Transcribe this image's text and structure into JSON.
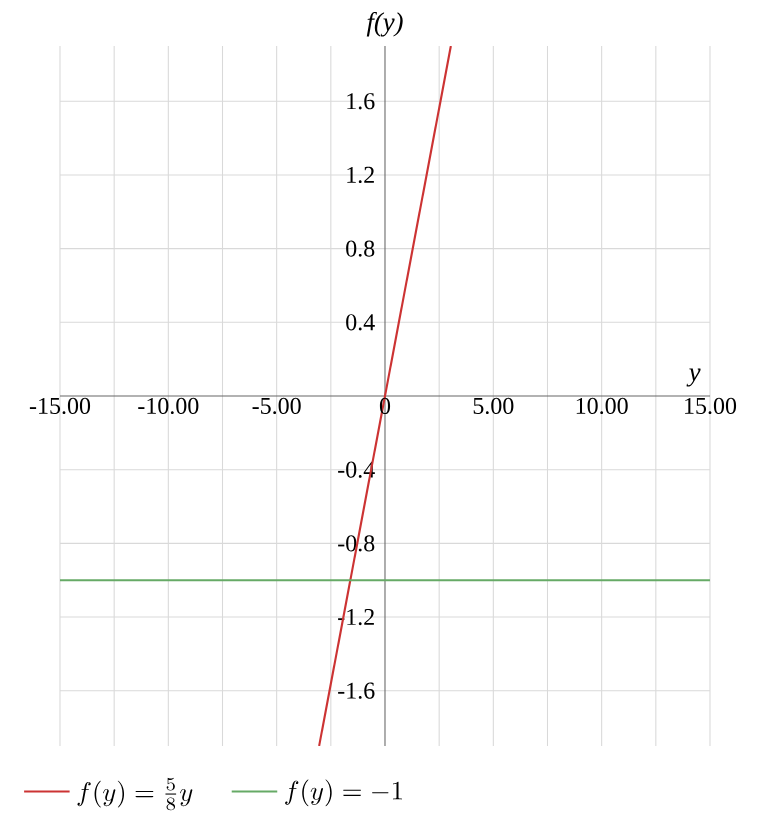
{
  "chart_data": {
    "type": "line",
    "xlabel": "y",
    "ylabel": "f(y)",
    "xlim": [
      -15,
      15
    ],
    "ylim": [
      -1.9,
      1.9
    ],
    "xticks": [
      {
        "value": -15,
        "label": "-15.00"
      },
      {
        "value": -12.5,
        "label": null
      },
      {
        "value": -10,
        "label": "-10.00"
      },
      {
        "value": -7.5,
        "label": null
      },
      {
        "value": -5,
        "label": "-5.00"
      },
      {
        "value": -2.5,
        "label": null
      },
      {
        "value": 0,
        "label": "0"
      },
      {
        "value": 2.5,
        "label": null
      },
      {
        "value": 5,
        "label": "5.00"
      },
      {
        "value": 7.5,
        "label": null
      },
      {
        "value": 10,
        "label": "10.00"
      },
      {
        "value": 12.5,
        "label": null
      },
      {
        "value": 15,
        "label": "15.00"
      }
    ],
    "yticks": [
      {
        "value": -1.6,
        "label": "-1.6"
      },
      {
        "value": -1.2,
        "label": "-1.2"
      },
      {
        "value": -0.8,
        "label": "-0.8"
      },
      {
        "value": -0.4,
        "label": "-0.4"
      },
      {
        "value": 0.4,
        "label": "0.4"
      },
      {
        "value": 0.8,
        "label": "0.8"
      },
      {
        "value": 1.2,
        "label": "1.2"
      },
      {
        "value": 1.6,
        "label": "1.6"
      }
    ],
    "grid": true,
    "legend": "bottom left",
    "marker": "none",
    "line_style": "solid",
    "series": [
      {
        "name": "f(y)=\\frac{5}{8}y",
        "color": "#cc3333",
        "x": [
          -3.04,
          3.04
        ],
        "values": [
          -1.9,
          1.9
        ]
      },
      {
        "name": "f(y)=-1",
        "color": "#66aa66",
        "x": [
          -15,
          15
        ],
        "values": [
          -1,
          -1
        ]
      }
    ]
  }
}
